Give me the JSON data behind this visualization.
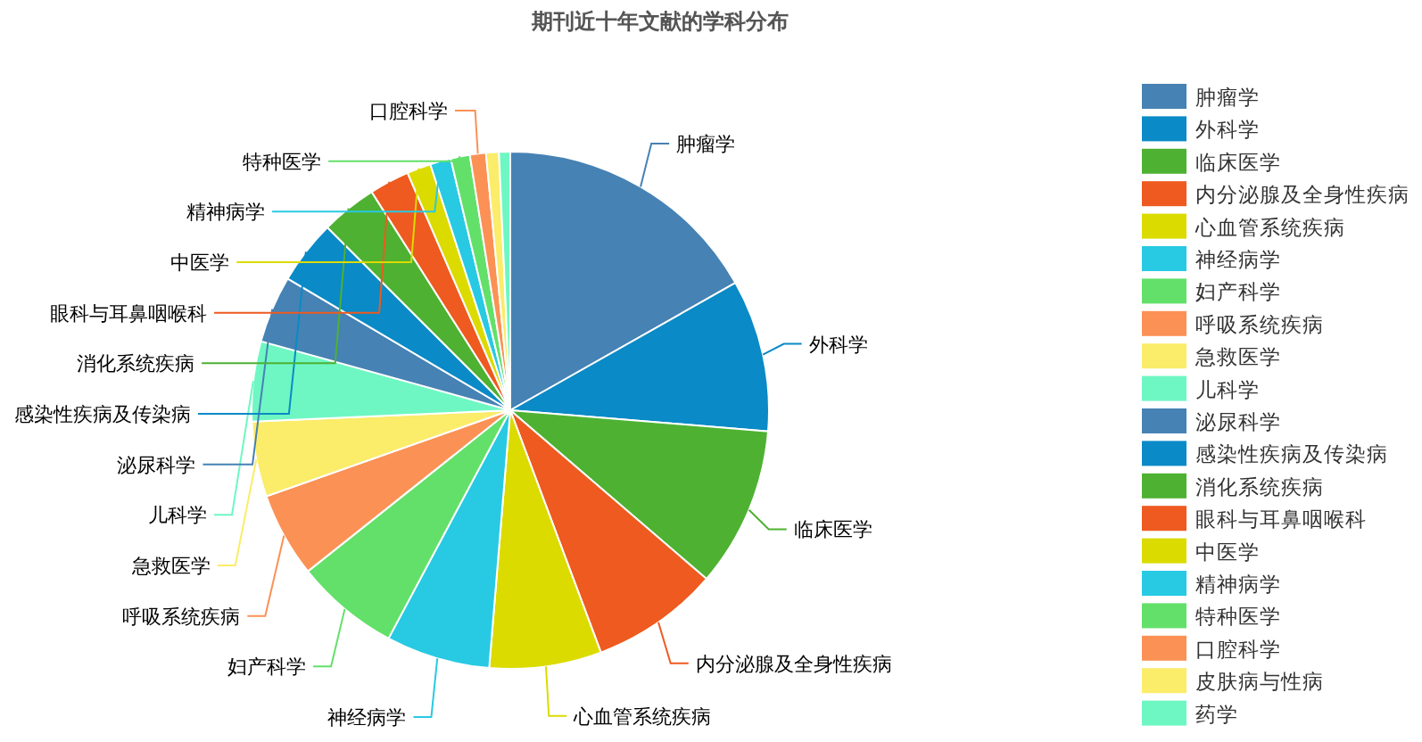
{
  "chart_data": {
    "type": "pie",
    "title": "期刊近十年文献的学科分布",
    "categories": [
      "肿瘤学",
      "外科学",
      "临床医学",
      "内分泌腺及全身性疾病",
      "心血管系统疾病",
      "神经病学",
      "妇产科学",
      "呼吸系统疾病",
      "急救医学",
      "儿科学",
      "泌尿科学",
      "感染性疾病及传染病",
      "消化系统疾病",
      "眼科与耳鼻咽喉科",
      "中医学",
      "精神病学",
      "特种医学",
      "口腔科学",
      "皮肤病与性病",
      "药学"
    ],
    "values": [
      16.8,
      9.5,
      10,
      8,
      7,
      6.5,
      6.5,
      5.3,
      4.7,
      5,
      4.2,
      4,
      3.5,
      2.5,
      1.5,
      1.3,
      1.2,
      1,
      0.8,
      0.7
    ],
    "colors": [
      "#4682b4",
      "#0a8ac6",
      "#4eb132",
      "#ee5a1f",
      "#dbdb00",
      "#28c9e3",
      "#63e06a",
      "#fb9155",
      "#fbec6a",
      "#6ef7c3",
      "#4682b4",
      "#0a8ac6",
      "#4eb132",
      "#ee5a1f",
      "#dbdb00",
      "#28c9e3",
      "#63e06a",
      "#fb9155",
      "#fbec6a",
      "#6ef7c3"
    ],
    "value_labels": [
      "肿瘤学",
      "外科学",
      "临床医学",
      "内分泌腺及全身性疾病",
      "心血管系统疾病",
      "神经病学",
      "妇产科学",
      "呼吸系统疾病",
      "急救医学",
      "儿科学",
      "泌尿科学",
      "感染性疾病及传染病",
      "消化系统疾病",
      "眼科与耳鼻咽喉科",
      "中医学",
      "精神病学",
      "特种医学",
      "口腔科学",
      null,
      null
    ],
    "legend": "right"
  }
}
